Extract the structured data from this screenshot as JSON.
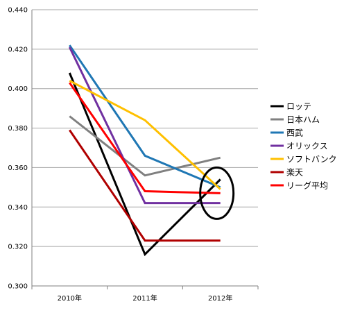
{
  "chart_data": {
    "type": "line",
    "categories": [
      "2010年",
      "2011年",
      "2012年"
    ],
    "ylim": [
      0.3,
      0.44
    ],
    "y_ticks": [
      "0.300",
      "0.320",
      "0.340",
      "0.360",
      "0.380",
      "0.400",
      "0.420",
      "0.440"
    ],
    "grid": "horizontal",
    "legend_position": "right",
    "series": [
      {
        "name": "ロッテ",
        "color": "#000000",
        "values": [
          0.408,
          0.316,
          0.354
        ]
      },
      {
        "name": "日本ハム",
        "color": "#808080",
        "values": [
          0.386,
          0.356,
          0.365
        ]
      },
      {
        "name": "西武",
        "color": "#1f77b4",
        "values": [
          0.422,
          0.366,
          0.35
        ]
      },
      {
        "name": "オリックス",
        "color": "#7030a0",
        "values": [
          0.421,
          0.342,
          0.342
        ]
      },
      {
        "name": "ソフトバンク",
        "color": "#ffc000",
        "values": [
          0.404,
          0.384,
          0.349
        ]
      },
      {
        "name": "楽天",
        "color": "#b00000",
        "values": [
          0.379,
          0.323,
          0.323
        ]
      },
      {
        "name": "リーグ平均",
        "color": "#ff0000",
        "values": [
          0.403,
          0.348,
          0.347
        ]
      }
    ],
    "annotations": [
      {
        "type": "ellipse",
        "note": "circle around 2012 values",
        "x_category": "2012年",
        "y_value": 0.347
      }
    ]
  }
}
